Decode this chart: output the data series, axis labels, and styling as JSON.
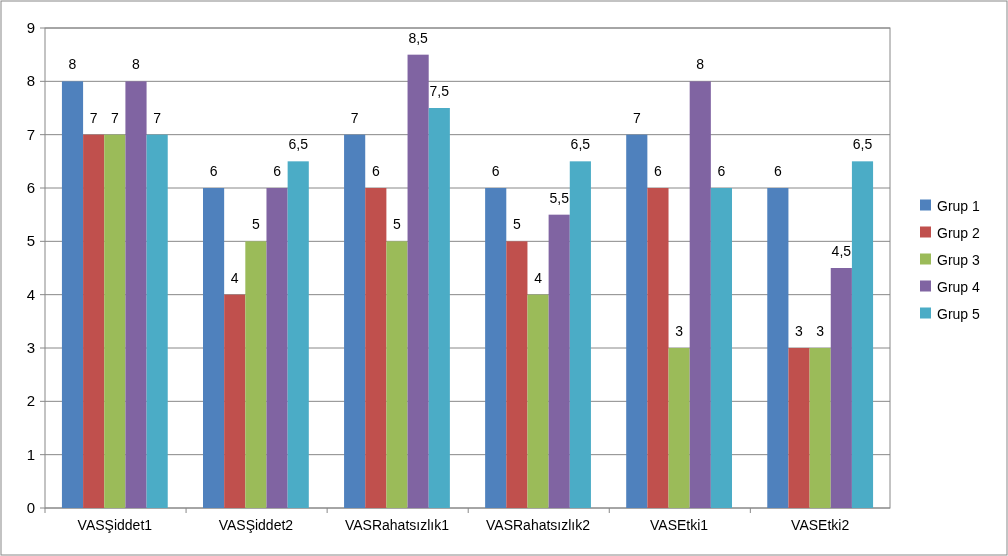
{
  "chart_data": {
    "type": "bar",
    "categories": [
      "VASŞiddet1",
      "VASŞiddet2",
      "VASRahatsızlık1",
      "VASRahatsızlık2",
      "VASEtki1",
      "VASEtki2"
    ],
    "series": [
      {
        "name": "Grup 1",
        "color": "#4f81bd",
        "values": [
          8,
          6,
          7,
          6,
          7,
          6
        ],
        "value_labels": [
          "8",
          "6",
          "7",
          "6",
          "7",
          "6"
        ]
      },
      {
        "name": "Grup 2",
        "color": "#c0504d",
        "values": [
          7,
          4,
          6,
          5,
          6,
          3
        ],
        "value_labels": [
          "7",
          "4",
          "6",
          "5",
          "6",
          "3"
        ]
      },
      {
        "name": "Grup 3",
        "color": "#9bbb59",
        "values": [
          7,
          5,
          5,
          4,
          3,
          3
        ],
        "value_labels": [
          "7",
          "5",
          "5",
          "4",
          "3",
          "3"
        ]
      },
      {
        "name": "Grup 4",
        "color": "#8064a2",
        "values": [
          8,
          6,
          8.5,
          5.5,
          8,
          4.5
        ],
        "value_labels": [
          "8",
          "6",
          "8,5",
          "5,5",
          "8",
          "4,5"
        ]
      },
      {
        "name": "Grup 5",
        "color": "#4bacc6",
        "values": [
          7,
          6.5,
          7.5,
          6.5,
          6,
          6.5
        ],
        "value_labels": [
          "7",
          "6,5",
          "7,5",
          "6,5",
          "6",
          "6,5"
        ]
      }
    ],
    "ylim": [
      0,
      9
    ],
    "yticks": [
      0,
      1,
      2,
      3,
      4,
      5,
      6,
      7,
      8,
      9
    ],
    "grid": "y",
    "legend": "right"
  }
}
